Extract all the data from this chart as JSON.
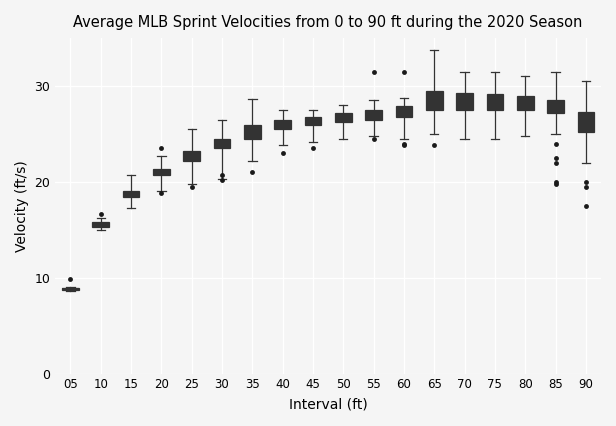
{
  "title": "Average MLB Sprint Velocities from 0 to 90 ft during the 2020 Season",
  "xlabel": "Interval (ft)",
  "ylabel": "Velocity (ft/s)",
  "xlabels": [
    "05",
    "10",
    "15",
    "20",
    "25",
    "30",
    "35",
    "40",
    "45",
    "50",
    "55",
    "60",
    "65",
    "70",
    "75",
    "80",
    "85",
    "90"
  ],
  "ylim": [
    0,
    35
  ],
  "yticks": [
    0,
    10,
    20,
    30
  ],
  "background_color": "#f5f5f5",
  "grid_color": "#ffffff",
  "boxes": [
    {
      "label": "05",
      "q1": 8.75,
      "med": 8.85,
      "q3": 8.95,
      "whislo": 8.65,
      "whishi": 9.0,
      "fliers": [
        9.9
      ]
    },
    {
      "label": "10",
      "q1": 15.3,
      "med": 15.6,
      "q3": 15.85,
      "whislo": 15.0,
      "whishi": 16.2,
      "fliers": [
        16.7
      ]
    },
    {
      "label": "15",
      "q1": 18.4,
      "med": 18.7,
      "q3": 19.1,
      "whislo": 17.3,
      "whishi": 20.7,
      "fliers": []
    },
    {
      "label": "20",
      "q1": 20.7,
      "med": 21.0,
      "q3": 21.35,
      "whislo": 19.0,
      "whishi": 22.7,
      "fliers": [
        23.5,
        18.8
      ]
    },
    {
      "label": "25",
      "q1": 22.2,
      "med": 22.7,
      "q3": 23.2,
      "whislo": 19.8,
      "whishi": 25.5,
      "fliers": [
        19.5
      ]
    },
    {
      "label": "30",
      "q1": 23.5,
      "med": 24.0,
      "q3": 24.5,
      "whislo": 20.3,
      "whishi": 26.5,
      "fliers": [
        20.2,
        20.7
      ]
    },
    {
      "label": "35",
      "q1": 24.5,
      "med": 25.2,
      "q3": 25.9,
      "whislo": 22.2,
      "whishi": 28.6,
      "fliers": [
        21.0
      ]
    },
    {
      "label": "40",
      "q1": 25.5,
      "med": 26.0,
      "q3": 26.5,
      "whislo": 23.8,
      "whishi": 27.5,
      "fliers": [
        23.0
      ]
    },
    {
      "label": "45",
      "q1": 25.9,
      "med": 26.3,
      "q3": 26.8,
      "whislo": 24.2,
      "whishi": 27.5,
      "fliers": [
        23.5
      ]
    },
    {
      "label": "50",
      "q1": 26.2,
      "med": 26.7,
      "q3": 27.2,
      "whislo": 24.5,
      "whishi": 28.0,
      "fliers": []
    },
    {
      "label": "55",
      "q1": 26.5,
      "med": 27.0,
      "q3": 27.5,
      "whislo": 24.8,
      "whishi": 28.5,
      "fliers": [
        31.5,
        24.5
      ]
    },
    {
      "label": "60",
      "q1": 26.8,
      "med": 27.3,
      "q3": 27.9,
      "whislo": 24.5,
      "whishi": 28.8,
      "fliers": [
        31.5,
        23.8,
        24.0
      ]
    },
    {
      "label": "65",
      "q1": 27.5,
      "med": 28.3,
      "q3": 29.5,
      "whislo": 25.0,
      "whishi": 33.8,
      "fliers": [
        23.8
      ]
    },
    {
      "label": "70",
      "q1": 27.5,
      "med": 28.3,
      "q3": 29.3,
      "whislo": 24.5,
      "whishi": 31.5,
      "fliers": []
    },
    {
      "label": "75",
      "q1": 27.5,
      "med": 28.2,
      "q3": 29.2,
      "whislo": 24.5,
      "whishi": 31.5,
      "fliers": []
    },
    {
      "label": "80",
      "q1": 27.5,
      "med": 28.2,
      "q3": 29.0,
      "whislo": 24.8,
      "whishi": 31.0,
      "fliers": []
    },
    {
      "label": "85",
      "q1": 27.2,
      "med": 27.8,
      "q3": 28.5,
      "whislo": 25.0,
      "whishi": 31.5,
      "fliers": [
        22.0,
        22.5,
        24.0,
        20.0,
        19.8
      ]
    },
    {
      "label": "90",
      "q1": 25.2,
      "med": 26.5,
      "q3": 27.3,
      "whislo": 22.0,
      "whishi": 30.5,
      "fliers": [
        19.5,
        20.0,
        17.5
      ]
    }
  ]
}
